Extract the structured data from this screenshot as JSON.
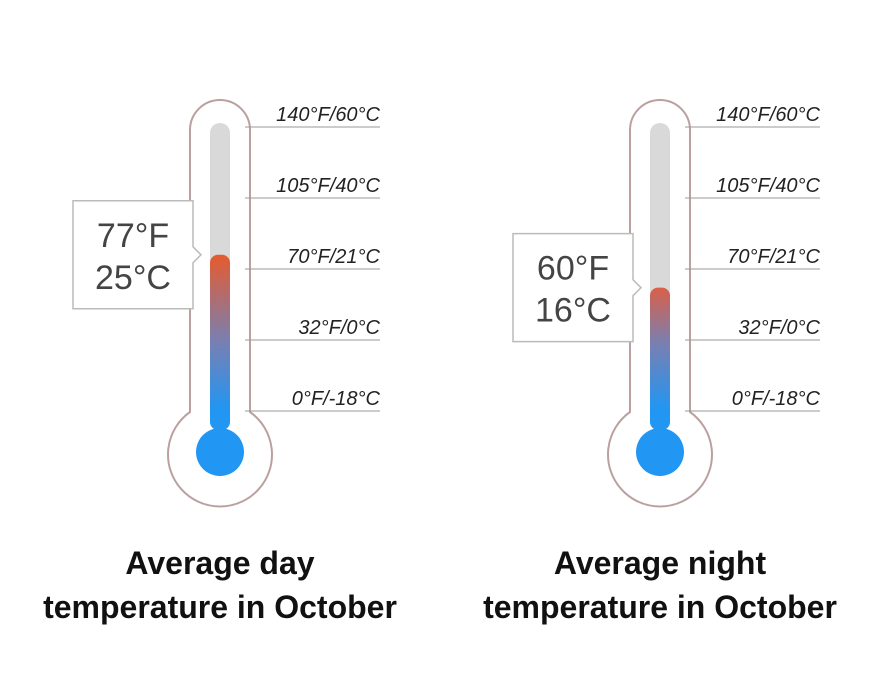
{
  "thermometers": [
    {
      "title_lines": [
        "Average day",
        "temperature in October"
      ],
      "value": 77,
      "value_labels": [
        "77°F",
        "25°C"
      ],
      "ticks": [
        {
          "value": 140,
          "label": "140°F/60°C"
        },
        {
          "value": 105,
          "label": "105°F/40°C"
        },
        {
          "value": 70,
          "label": "70°F/21°C"
        },
        {
          "value": 32,
          "label": "32°F/0°C"
        },
        {
          "value": 0,
          "label": "0°F/-18°C"
        }
      ]
    },
    {
      "title_lines": [
        "Average night",
        "temperature in October"
      ],
      "value": 60,
      "value_labels": [
        "60°F",
        "16°C"
      ],
      "ticks": [
        {
          "value": 140,
          "label": "140°F/60°C"
        },
        {
          "value": 105,
          "label": "105°F/40°C"
        },
        {
          "value": 70,
          "label": "70°F/21°C"
        },
        {
          "value": 32,
          "label": "32°F/0°C"
        },
        {
          "value": 0,
          "label": "0°F/-18°C"
        }
      ]
    }
  ]
}
